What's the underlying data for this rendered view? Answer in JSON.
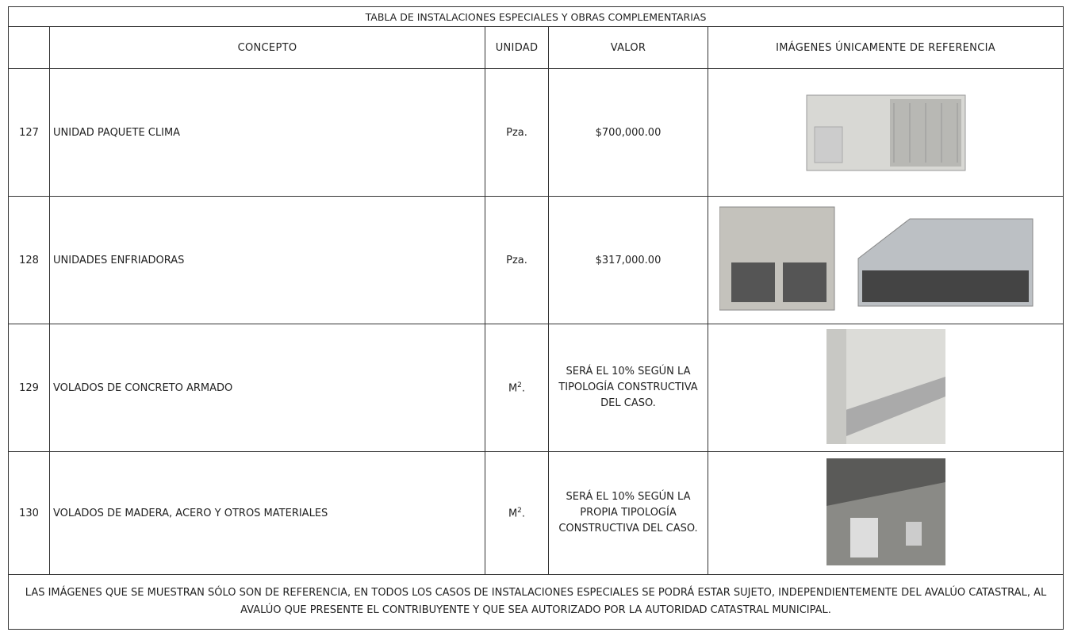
{
  "table": {
    "title": "TABLA DE INSTALACIONES ESPECIALES Y OBRAS COMPLEMENTARIAS",
    "headers": [
      "CONCEPTO",
      "UNIDAD",
      "VALOR",
      "IMÁGENES ÚNICAMENTE DE REFERENCIA"
    ],
    "rows": [
      {
        "number": "127",
        "concept": "UNIDAD PAQUETE CLIMA",
        "unit": [
          "Pza."
        ],
        "value": "$700,000.00"
      },
      {
        "number": "128",
        "concept": "UNIDADES ENFRIADORAS",
        "unit": [
          "Pza."
        ],
        "value": "$317,000.00"
      },
      {
        "number": "129",
        "concept": "VOLADOS DE CONCRETO ARMADO",
        "unit": [
          "M",
          "2",
          "."
        ],
        "value": "SERÁ EL 10% SEGÚN LA TIPOLOGÍA CONSTRUCTIVA DEL CASO."
      },
      {
        "number": "130",
        "concept": "VOLADOS DE MADERA, ACERO Y OTROS MATERIALES",
        "unit": [
          "M",
          "2",
          "."
        ],
        "value": "SERÁ EL 10% SEGÚN LA PROPIA TIPOLOGÍA CONSTRUCTIVA DEL CASO."
      }
    ],
    "note": "LAS IMÁGENES QUE SE MUESTRAN SÓLO SON DE REFERENCIA, EN TODOS LOS CASOS DE INSTALACIONES ESPECIALES SE PODRÁ ESTAR SUJETO, INDEPENDIENTEMENTE DEL AVALÚO CATASTRAL, AL AVALÚO QUE PRESENTE EL CONTRIBUYENTE Y QUE SEA AUTORIZADO POR LA AUTORIDAD CATASTRAL MUNICIPAL."
  }
}
